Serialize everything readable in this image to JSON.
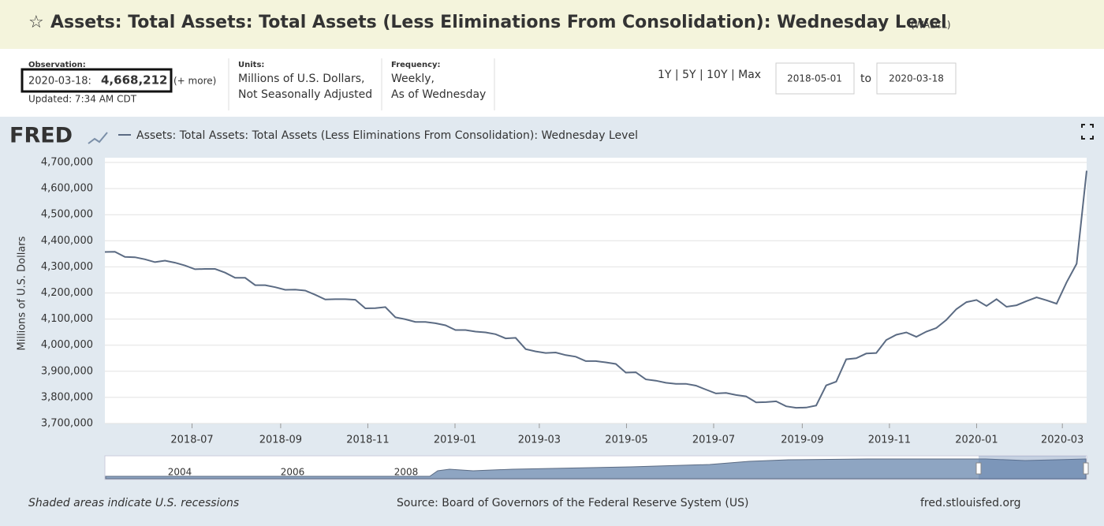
{
  "header": {
    "title": "Assets: Total Assets: Total Assets (Less Eliminations From Consolidation): Wednesday Level",
    "code": "(WALCL)"
  },
  "info": {
    "observation_label": "Observation:",
    "observation_date": "2020-03-18:",
    "observation_value": "4,668,212",
    "more": "(+ more)",
    "updated": "Updated: 7:34 AM CDT",
    "units_label": "Units:",
    "units": [
      "Millions of U.S. Dollars,",
      "Not Seasonally Adjusted"
    ],
    "frequency_label": "Frequency:",
    "frequency": [
      "Weekly,",
      "As of Wednesday"
    ],
    "ranges": "1Y | 5Y | 10Y | Max",
    "start": "2018-05-01",
    "to": "to",
    "end": "2020-03-18"
  },
  "chart_data": {
    "type": "line",
    "logo": "FRED",
    "ylabel": "Millions of U.S. Dollars",
    "series": [
      {
        "name": "Assets: Total Assets: Total Assets (Less Eliminations From Consolidation): Wednesday Level",
        "color": "#5b6b83",
        "values": [
          4357000,
          4358000,
          4338000,
          4337000,
          4329000,
          4318000,
          4324000,
          4316000,
          4305000,
          4291000,
          4292000,
          4292000,
          4278000,
          4258000,
          4258000,
          4230000,
          4230000,
          4222000,
          4212000,
          4213000,
          4209000,
          4193000,
          4175000,
          4176000,
          4176000,
          4174000,
          4141000,
          4142000,
          4146000,
          4107000,
          4099000,
          4089000,
          4089000,
          4084000,
          4076000,
          4058000,
          4058000,
          4052000,
          4049000,
          4042000,
          4026000,
          4028000,
          3985000,
          3976000,
          3970000,
          3972000,
          3962000,
          3956000,
          3939000,
          3939000,
          3934000,
          3928000,
          3895000,
          3896000,
          3869000,
          3864000,
          3856000,
          3852000,
          3852000,
          3845000,
          3830000,
          3815000,
          3817000,
          3809000,
          3804000,
          3781000,
          3782000,
          3785000,
          3766000,
          3760000,
          3761000,
          3769000,
          3846000,
          3860000,
          3946000,
          3950000,
          3968000,
          3970000,
          4020000,
          4040000,
          4049000,
          4032000,
          4052000,
          4066000,
          4097000,
          4138000,
          4165000,
          4173000,
          4150000,
          4176000,
          4147000,
          4153000,
          4169000,
          4183000,
          4172000,
          4159000,
          4241000,
          4312000,
          4668212
        ]
      }
    ],
    "ylim": [
      3700000,
      4700000
    ],
    "yticks": [
      {
        "value": 3700000,
        "label": "3,700,000"
      },
      {
        "value": 3800000,
        "label": "3,800,000"
      },
      {
        "value": 3900000,
        "label": "3,900,000"
      },
      {
        "value": 4000000,
        "label": "4,000,000"
      },
      {
        "value": 4100000,
        "label": "4,100,000"
      },
      {
        "value": 4200000,
        "label": "4,200,000"
      },
      {
        "value": 4300000,
        "label": "4,300,000"
      },
      {
        "value": 4400000,
        "label": "4,400,000"
      },
      {
        "value": 4500000,
        "label": "4,500,000"
      },
      {
        "value": 4600000,
        "label": "4,600,000"
      },
      {
        "value": 4700000,
        "label": "4,700,000"
      }
    ],
    "xticks": [
      "2018-07",
      "2018-09",
      "2018-11",
      "2019-01",
      "2019-03",
      "2019-05",
      "2019-07",
      "2019-09",
      "2019-11",
      "2020-01",
      "2020-03"
    ],
    "grid": true,
    "navigator_years": [
      "2004",
      "2006",
      "2008"
    ]
  },
  "footer": {
    "note": "Shaded areas indicate U.S. recessions",
    "source": "Source: Board of Governors of the Federal Reserve System (US)",
    "site": "fred.stlouisfed.org"
  }
}
